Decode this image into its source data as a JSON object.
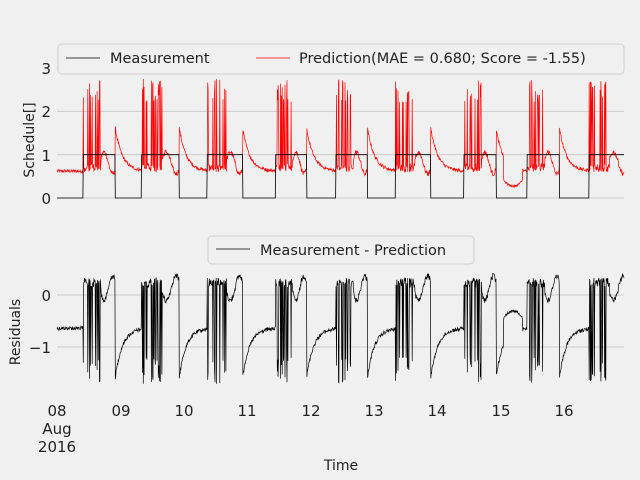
{
  "colors": {
    "background": "#f0f0f0",
    "grid": "#cbcbcb",
    "measurement": "#000000",
    "prediction": "#ff0000",
    "residual": "#000000"
  },
  "chart_data": [
    {
      "type": "line",
      "ylabel": "Schedule[]",
      "ylim": [
        0,
        3
      ],
      "yticks": [
        "0",
        "1",
        "2",
        "3"
      ],
      "grid": true,
      "legend": {
        "placement": "top",
        "entries": [
          "Measurement",
          "Prediction(MAE = 0.680; Score = -1.55)"
        ]
      },
      "x_domain_days": [
        8,
        17
      ],
      "series": [
        {
          "name": "Measurement",
          "kind": "schedule",
          "on_intervals_days": [
            [
              8.41,
              8.92
            ],
            [
              9.33,
              9.93
            ],
            [
              10.37,
              10.93
            ],
            [
              11.45,
              11.94
            ],
            [
              12.4,
              12.9
            ],
            [
              13.34,
              13.9
            ],
            [
              14.42,
              14.93
            ],
            [
              15.42,
              15.93
            ],
            [
              16.4,
              16.99
            ]
          ]
        },
        {
          "name": "Prediction(MAE = 0.680; Score = -1.55)",
          "kind": "noisy",
          "off_level": 0.6,
          "spike_range": [
            0.6,
            2.75
          ]
        }
      ]
    },
    {
      "type": "line",
      "ylabel": "Residuals",
      "xlabel": "Time",
      "ylim": [
        -1.9,
        0.55
      ],
      "yticks": [
        "0",
        "−1"
      ],
      "grid": true,
      "legend": {
        "placement": "top",
        "entries": [
          "Measurement - Prediction"
        ]
      },
      "series": [
        {
          "name": "Measurement - Prediction",
          "kind": "difference",
          "range": [
            -1.85,
            0.5
          ]
        }
      ],
      "x_ticks": [
        "08",
        "09",
        "10",
        "11",
        "12",
        "13",
        "14",
        "15",
        "16"
      ],
      "x_tick_sub": [
        "Aug",
        "2016"
      ]
    }
  ],
  "labels": {
    "top_ylabel": "Schedule[]",
    "bottom_ylabel": "Residuals",
    "xlabel": "Time",
    "legend_top_1": "Measurement",
    "legend_top_2": "Prediction(MAE = 0.680; Score = -1.55)",
    "legend_bottom_1": "Measurement - Prediction",
    "top_ticks": [
      "0",
      "1",
      "2",
      "3"
    ],
    "bottom_ticks": [
      "0",
      "−1"
    ],
    "x_ticks": [
      "08",
      "09",
      "10",
      "11",
      "12",
      "13",
      "14",
      "15",
      "16"
    ],
    "x_sub_month": "Aug",
    "x_sub_year": "2016"
  }
}
